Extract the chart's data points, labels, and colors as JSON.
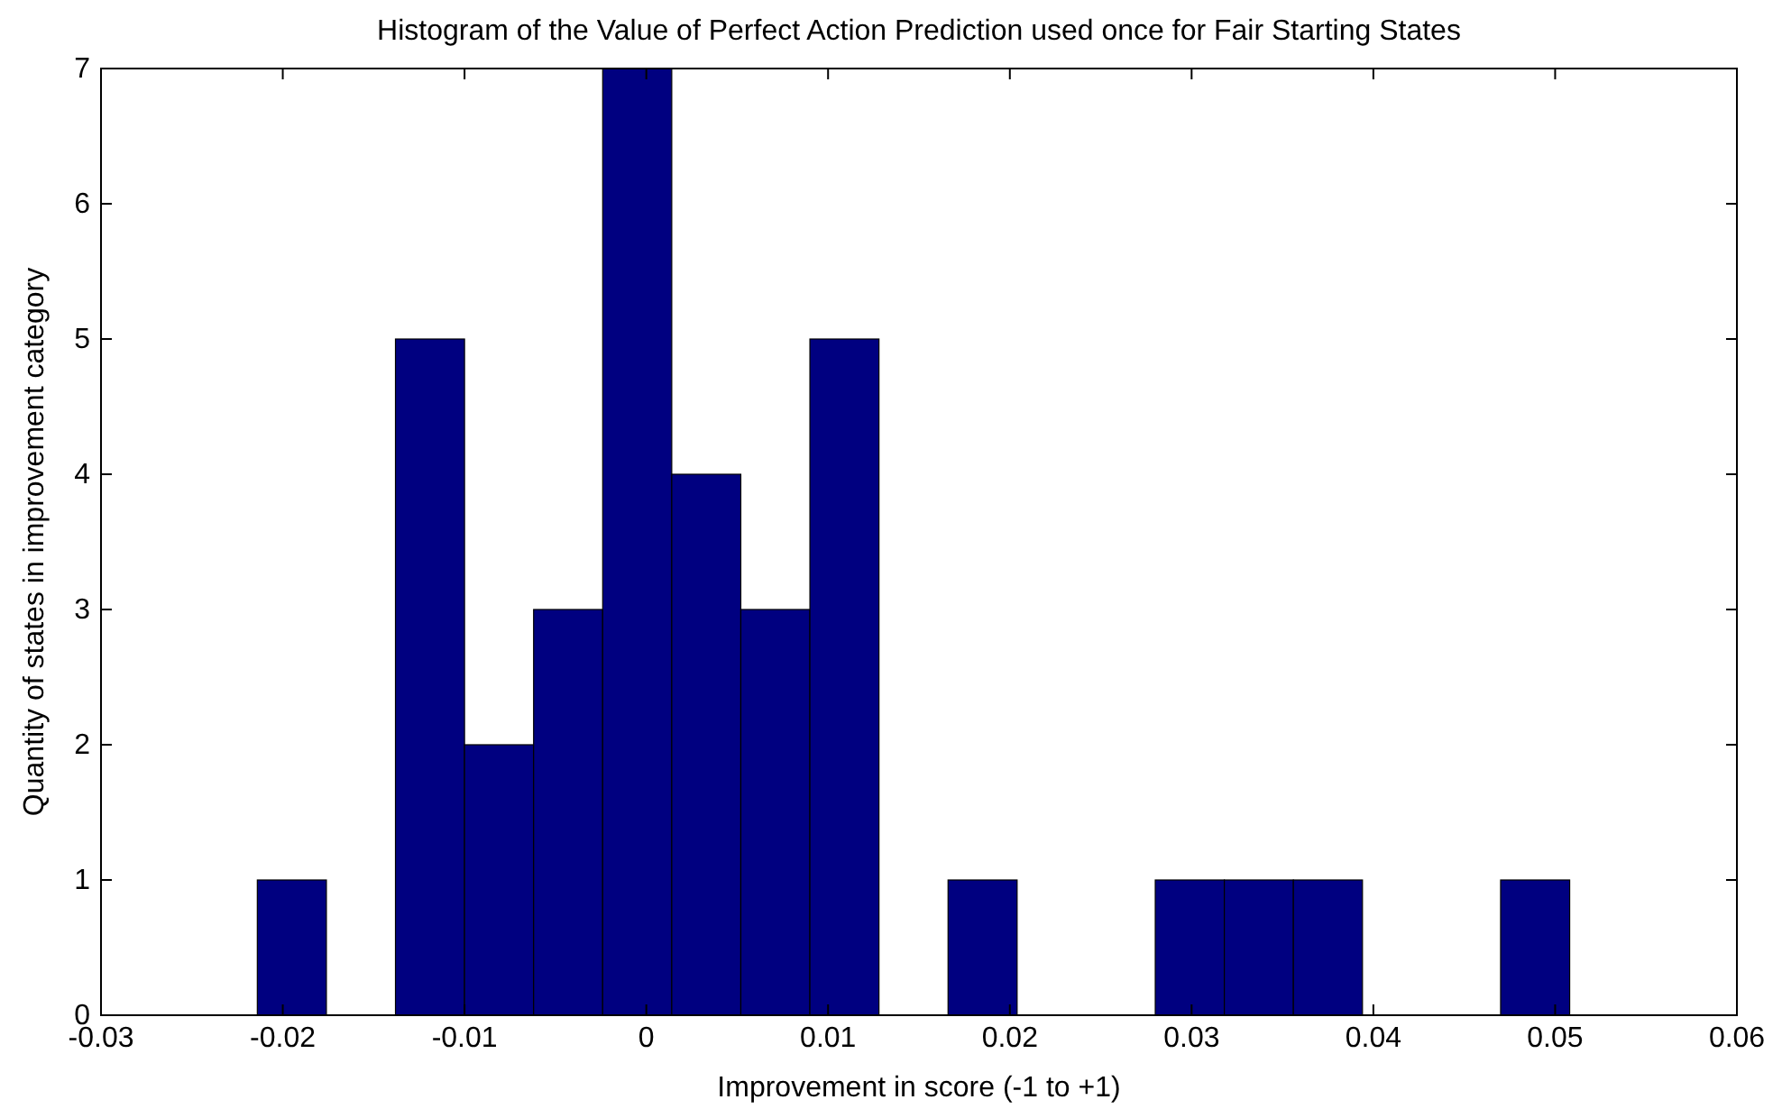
{
  "chart_data": {
    "type": "histogram",
    "title": "Histogram of the Value of Perfect Action Prediction used once for Fair Starting States",
    "xlabel": "Improvement in score (-1 to +1)",
    "ylabel": "Quantity of states in improvement category",
    "bins": [
      -0.0214,
      -0.0176,
      -0.0138,
      -0.01,
      -0.0062,
      -0.0024,
      0.0014,
      0.0052,
      0.009,
      0.0128,
      0.0166,
      0.0204,
      0.0242,
      0.028,
      0.0318,
      0.0356,
      0.0394,
      0.0432,
      0.047,
      0.0508
    ],
    "values": [
      1,
      0,
      5,
      2,
      3,
      7,
      4,
      3,
      5,
      0,
      1,
      0,
      0,
      1,
      1,
      1,
      0,
      0,
      1
    ],
    "color": "#000080",
    "xlim": [
      -0.03,
      0.06
    ],
    "xticks": [
      -0.03,
      -0.02,
      -0.01,
      0,
      0.01,
      0.02,
      0.03,
      0.04,
      0.05,
      0.06
    ],
    "ylim": [
      0,
      7
    ],
    "yticks": [
      0,
      1,
      2,
      3,
      4,
      5,
      6,
      7
    ],
    "grid": false
  }
}
